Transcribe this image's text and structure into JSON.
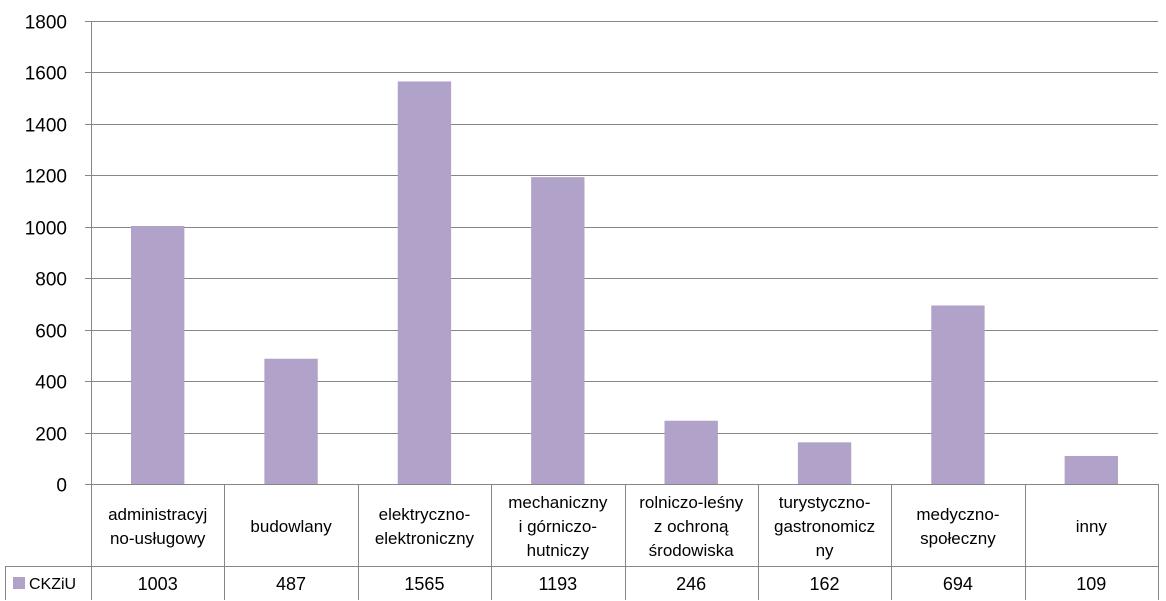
{
  "chart_data": {
    "type": "bar",
    "title": "",
    "xlabel": "",
    "ylabel": "",
    "ylim": [
      0,
      1800
    ],
    "yticks": [
      0,
      200,
      400,
      600,
      800,
      1000,
      1200,
      1400,
      1600,
      1800
    ],
    "grid": true,
    "legend": "data-table-row",
    "bar_color": "#b0a2c8",
    "categories": [
      [
        "administracyj",
        "no-usługowy"
      ],
      [
        "budowlany"
      ],
      [
        "elektryczno-",
        "elektroniczny"
      ],
      [
        "mechaniczny",
        "i górniczo-",
        "hutniczy"
      ],
      [
        "rolniczo-leśny",
        "z ochroną",
        "środowiska"
      ],
      [
        "turystyczno-",
        "gastronomicz",
        "ny"
      ],
      [
        "medyczno-",
        "społeczny"
      ],
      [
        "inny"
      ]
    ],
    "series": [
      {
        "name": "CKZiU",
        "values": [
          1003,
          487,
          1565,
          1193,
          246,
          162,
          694,
          109
        ]
      }
    ]
  }
}
